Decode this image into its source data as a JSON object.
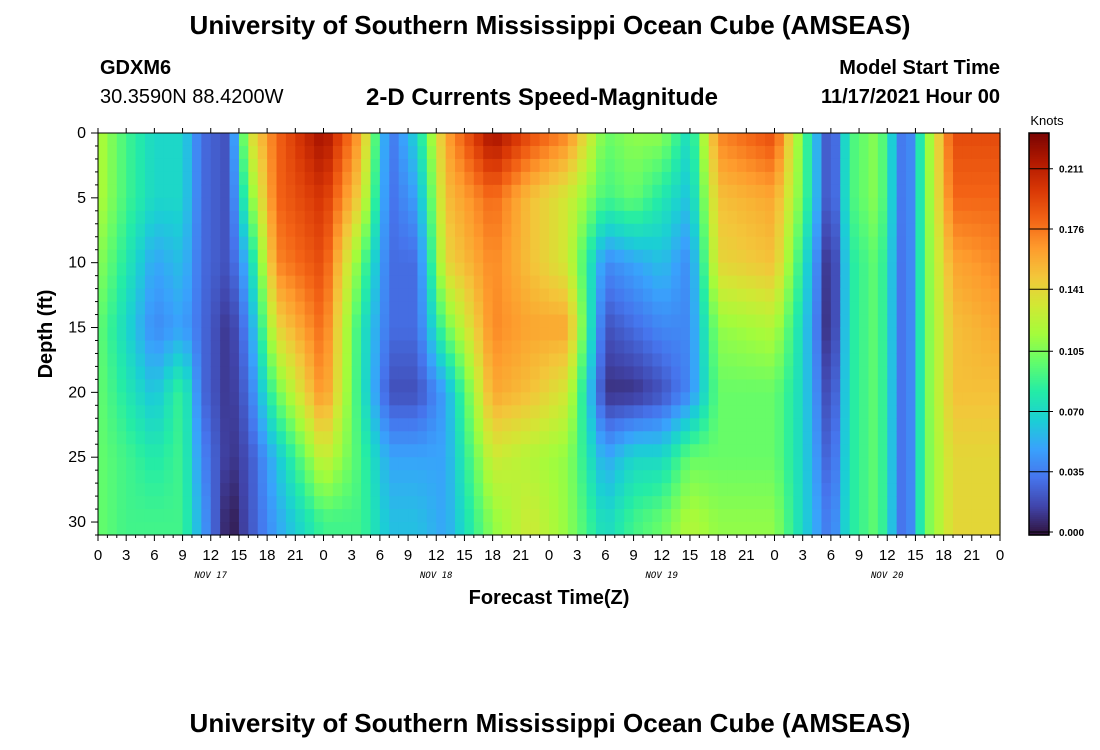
{
  "header": {
    "title": "University of Southern Mississippi Ocean Cube (AMSEAS)",
    "station": "GDXM6",
    "location": "30.3590N  88.4200W",
    "subtitle": "2-D Currents Speed-Magnitude",
    "model_start_label": "Model Start Time",
    "model_start_value": "11/17/2021 Hour 00"
  },
  "footer": {
    "title": "University of Southern Mississippi Ocean Cube (AMSEAS)"
  },
  "chart_data": {
    "type": "heatmap",
    "xlabel": "Forecast Time(Z)",
    "ylabel": "Depth (ft)",
    "x_range_hours": [
      0,
      96
    ],
    "y_range_ft": [
      0,
      31
    ],
    "x_tick_labels": [
      "0",
      "3",
      "6",
      "9",
      "12",
      "15",
      "18",
      "21",
      "0",
      "3",
      "6",
      "9",
      "12",
      "15",
      "18",
      "21",
      "0",
      "3",
      "6",
      "9",
      "12",
      "15",
      "18",
      "21",
      "0",
      "3",
      "6",
      "9",
      "12",
      "15",
      "18",
      "21",
      "0"
    ],
    "y_ticks": [
      0,
      5,
      10,
      15,
      20,
      25,
      30
    ],
    "day_labels": [
      {
        "label": "NOV 17",
        "hour": 12
      },
      {
        "label": "NOV 18",
        "hour": 36
      },
      {
        "label": "NOV 19",
        "hour": 60
      },
      {
        "label": "NOV 20",
        "hour": 84
      }
    ],
    "colorbar": {
      "title": "Knots",
      "ticks": [
        0.0,
        0.035,
        0.07,
        0.105,
        0.141,
        0.176,
        0.211
      ],
      "tick_labels": [
        "0.000",
        "0.035",
        "0.070",
        "0.105",
        "0.141",
        "0.176",
        "0.211"
      ],
      "range": [
        0,
        0.23
      ],
      "colors": [
        "#30123b",
        "#4145ab",
        "#4675ed",
        "#39a2fc",
        "#1bcfd4",
        "#24eca6",
        "#61fc6c",
        "#a4fc3b",
        "#d1e834",
        "#f3c63a",
        "#fe9b2d",
        "#f36315",
        "#d93806",
        "#b11901",
        "#7a0402"
      ]
    },
    "depth_profiles_ft": [
      0,
      5,
      10,
      15,
      20,
      25,
      30
    ],
    "speed_knots_by_hour": [
      {
        "hour": 0,
        "values": [
          0.12,
          0.12,
          0.11,
          0.1,
          0.1,
          0.1,
          0.1
        ]
      },
      {
        "hour": 3,
        "values": [
          0.09,
          0.09,
          0.08,
          0.07,
          0.08,
          0.09,
          0.09
        ]
      },
      {
        "hour": 6,
        "values": [
          0.07,
          0.07,
          0.05,
          0.04,
          0.06,
          0.08,
          0.09
        ]
      },
      {
        "hour": 9,
        "values": [
          0.07,
          0.07,
          0.06,
          0.05,
          0.09,
          0.09,
          0.09
        ]
      },
      {
        "hour": 11,
        "values": [
          0.03,
          0.03,
          0.03,
          0.03,
          0.03,
          0.04,
          0.05
        ]
      },
      {
        "hour": 14,
        "values": [
          0.02,
          0.02,
          0.02,
          0.01,
          0.01,
          0.01,
          0.0
        ]
      },
      {
        "hour": 16,
        "values": [
          0.13,
          0.1,
          0.06,
          0.04,
          0.03,
          0.02,
          0.02
        ]
      },
      {
        "hour": 19,
        "values": [
          0.18,
          0.18,
          0.17,
          0.14,
          0.1,
          0.06,
          0.05
        ]
      },
      {
        "hour": 24,
        "values": [
          0.22,
          0.2,
          0.19,
          0.18,
          0.17,
          0.13,
          0.09
        ]
      },
      {
        "hour": 28,
        "values": [
          0.16,
          0.14,
          0.1,
          0.08,
          0.08,
          0.09,
          0.09
        ]
      },
      {
        "hour": 31,
        "values": [
          0.03,
          0.03,
          0.03,
          0.03,
          0.02,
          0.05,
          0.06
        ]
      },
      {
        "hour": 34,
        "values": [
          0.07,
          0.05,
          0.03,
          0.03,
          0.02,
          0.05,
          0.06
        ]
      },
      {
        "hour": 37,
        "values": [
          0.16,
          0.15,
          0.14,
          0.1,
          0.05,
          0.05,
          0.05
        ]
      },
      {
        "hour": 42,
        "values": [
          0.22,
          0.18,
          0.17,
          0.17,
          0.16,
          0.13,
          0.11
        ]
      },
      {
        "hour": 46,
        "values": [
          0.19,
          0.15,
          0.15,
          0.16,
          0.15,
          0.12,
          0.13
        ]
      },
      {
        "hour": 50,
        "values": [
          0.17,
          0.13,
          0.13,
          0.16,
          0.13,
          0.11,
          0.11
        ]
      },
      {
        "hour": 54,
        "values": [
          0.1,
          0.09,
          0.04,
          0.02,
          0.01,
          0.05,
          0.07
        ]
      },
      {
        "hour": 57,
        "values": [
          0.11,
          0.1,
          0.05,
          0.03,
          0.01,
          0.07,
          0.09
        ]
      },
      {
        "hour": 60,
        "values": [
          0.11,
          0.08,
          0.06,
          0.04,
          0.02,
          0.07,
          0.1
        ]
      },
      {
        "hour": 63,
        "values": [
          0.07,
          0.06,
          0.04,
          0.04,
          0.04,
          0.1,
          0.12
        ]
      },
      {
        "hour": 66,
        "values": [
          0.17,
          0.15,
          0.14,
          0.11,
          0.1,
          0.1,
          0.11
        ]
      },
      {
        "hour": 72,
        "values": [
          0.19,
          0.16,
          0.15,
          0.12,
          0.1,
          0.1,
          0.11
        ]
      },
      {
        "hour": 75,
        "values": [
          0.1,
          0.1,
          0.08,
          0.07,
          0.07,
          0.07,
          0.07
        ]
      },
      {
        "hour": 78,
        "values": [
          0.01,
          0.01,
          0.0,
          0.0,
          0.01,
          0.02,
          0.03
        ]
      },
      {
        "hour": 80,
        "values": [
          0.09,
          0.09,
          0.08,
          0.08,
          0.08,
          0.08,
          0.08
        ]
      },
      {
        "hour": 83,
        "values": [
          0.11,
          0.11,
          0.1,
          0.1,
          0.1,
          0.1,
          0.1
        ]
      },
      {
        "hour": 86,
        "values": [
          0.02,
          0.02,
          0.02,
          0.02,
          0.02,
          0.02,
          0.02
        ]
      },
      {
        "hour": 88,
        "values": [
          0.1,
          0.1,
          0.1,
          0.1,
          0.1,
          0.1,
          0.1
        ]
      },
      {
        "hour": 91,
        "values": [
          0.19,
          0.18,
          0.16,
          0.15,
          0.15,
          0.14,
          0.14
        ]
      },
      {
        "hour": 96,
        "values": [
          0.19,
          0.18,
          0.17,
          0.16,
          0.15,
          0.14,
          0.14
        ]
      }
    ]
  }
}
